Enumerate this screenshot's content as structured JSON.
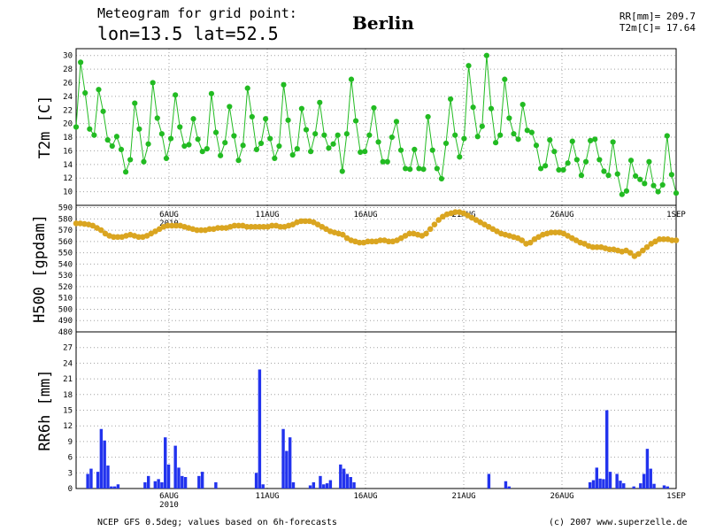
{
  "header": {
    "line1": "Meteogram for grid point:",
    "line2": "lon=13.5 lat=52.5",
    "city": "Berlin",
    "rr_total": "RR[mm]= 209.7",
    "t2m_mean": "T2m[C]= 17.64"
  },
  "footer": {
    "source": "NCEP GFS 0.5deg; values based on 6h-forecasts",
    "copyright": "(c) 2007 www.superzelle.de"
  },
  "colors": {
    "t2m": "#22bb22",
    "h500": "#daa520",
    "rr": "#2233ee",
    "grid": "#a0a0a0"
  },
  "chart_data": [
    {
      "type": "line",
      "ylabel": "T2m [C]",
      "ylim": [
        8,
        31
      ],
      "yticks": [
        10,
        12,
        14,
        16,
        18,
        20,
        22,
        24,
        26,
        28,
        30
      ],
      "xticks": [
        "6AUG",
        "11AUG",
        "16AUG",
        "21AUG",
        "26AUG",
        "1SEP"
      ],
      "year_label": "2010",
      "grid": true,
      "series": [
        {
          "values": [
            19.5,
            29.0,
            24.5,
            19.2,
            18.3,
            25.0,
            21.8,
            17.6,
            16.7,
            18.1,
            16.2,
            12.9,
            14.7,
            23.0,
            19.2,
            14.4,
            17.0,
            26.0,
            20.8,
            18.5,
            14.9,
            17.8,
            24.2,
            19.5,
            16.7,
            16.9,
            20.7,
            17.7,
            15.9,
            16.3,
            24.4,
            18.7,
            15.3,
            17.2,
            22.5,
            18.2,
            14.6,
            16.8,
            25.2,
            21.0,
            16.2,
            17.1,
            20.7,
            17.8,
            14.9,
            16.7,
            25.7,
            20.5,
            15.4,
            16.3,
            22.2,
            19.1,
            15.9,
            18.5,
            23.1,
            18.3,
            16.4,
            17.0,
            18.3,
            13.0,
            18.5,
            26.5,
            20.4,
            15.8,
            15.9,
            18.3,
            22.3,
            17.3,
            14.4,
            14.4,
            18.0,
            20.3,
            16.1,
            13.4,
            13.3,
            16.2,
            13.4,
            13.3,
            21.0,
            16.1,
            13.4,
            11.9,
            17.1,
            23.6,
            18.3,
            15.1,
            17.8,
            28.5,
            22.4,
            18.1,
            19.6,
            30.0,
            22.2,
            17.2,
            18.3,
            26.5,
            20.8,
            18.5,
            17.7,
            22.8,
            19.0,
            18.7,
            16.8,
            13.4,
            13.8,
            17.6,
            15.9,
            13.2,
            13.2,
            14.2,
            17.4,
            14.7,
            12.4,
            14.4,
            17.5,
            17.7,
            14.7,
            13.0,
            12.4,
            17.3,
            12.6,
            9.6,
            10.1,
            14.6,
            12.3,
            11.8,
            11.2,
            14.4,
            10.9,
            10.0,
            11.0,
            18.2,
            12.5,
            9.8
          ]
        }
      ]
    },
    {
      "type": "line",
      "ylabel": "H500 [gpdam]",
      "ylim": [
        480,
        592
      ],
      "yticks": [
        480,
        490,
        500,
        510,
        520,
        530,
        540,
        550,
        560,
        570,
        580,
        590
      ],
      "xticks": [
        "6AUG",
        "11AUG",
        "16AUG",
        "21AUG",
        "26AUG",
        "1SEP"
      ],
      "year_label": "2010",
      "grid": true,
      "series": [
        {
          "values": [
            576,
            576,
            575.5,
            575,
            574,
            572,
            570,
            567,
            565,
            564,
            564,
            564,
            565,
            566,
            565,
            564,
            564,
            565,
            567,
            569,
            571,
            573,
            574,
            574,
            574,
            574,
            573,
            572,
            571,
            570,
            570,
            570,
            571,
            571,
            572,
            572,
            572,
            573,
            574,
            574,
            574,
            573,
            573,
            573,
            573,
            573,
            573,
            574,
            574,
            573,
            573,
            574,
            575,
            577,
            578,
            578,
            578,
            577,
            575,
            573,
            571,
            569,
            568,
            567,
            566,
            563,
            561,
            560,
            559,
            559,
            560,
            560,
            560,
            561,
            561,
            560,
            560,
            561,
            563,
            565,
            567,
            567,
            566,
            565,
            567,
            571,
            575,
            579,
            582,
            584,
            585,
            586,
            586,
            585,
            583,
            581,
            579,
            577,
            575,
            573,
            571,
            569,
            567,
            566,
            565,
            564,
            563,
            561,
            558,
            559,
            562,
            564,
            566,
            567,
            568,
            568,
            568,
            567,
            565,
            563,
            561,
            559,
            558,
            556,
            555,
            555,
            555,
            554,
            553,
            553,
            552,
            551,
            552,
            550,
            547,
            549,
            552,
            555,
            558,
            560,
            562,
            562,
            562,
            561,
            561
          ]
        }
      ]
    },
    {
      "type": "bar",
      "ylabel": "RR6h [mm]",
      "ylim": [
        0,
        30
      ],
      "yticks": [
        0,
        3,
        6,
        9,
        12,
        15,
        18,
        21,
        24,
        27
      ],
      "xticks": [
        "6AUG",
        "11AUG",
        "16AUG",
        "21AUG",
        "26AUG",
        "1SEP"
      ],
      "year_label": "2010",
      "grid": true,
      "series": [
        {
          "values": [
            0,
            0,
            0,
            2.8,
            3.8,
            0,
            3.2,
            11.4,
            9.2,
            4.4,
            0.4,
            0.4,
            0.8,
            0,
            0,
            0,
            0,
            0,
            0,
            0,
            1.2,
            2.4,
            0,
            1.4,
            1.8,
            1.2,
            9.8,
            4.6,
            0,
            8.2,
            4.0,
            2.4,
            2.2,
            0,
            0,
            0,
            2.4,
            3.2,
            0,
            0,
            0,
            1.2,
            0,
            0,
            0,
            0,
            0,
            0,
            0,
            0,
            0,
            0,
            0,
            3.0,
            22.8,
            0.8,
            0,
            0,
            0,
            0,
            0,
            11.4,
            7.2,
            9.8,
            1.2,
            0,
            0,
            0,
            0,
            0.6,
            1.2,
            0,
            2.4,
            0.8,
            1.0,
            1.6,
            0,
            0,
            4.6,
            3.8,
            2.8,
            2.2,
            1.2,
            0,
            0,
            0,
            0,
            0,
            0,
            0,
            0,
            0,
            0,
            0,
            0,
            0,
            0,
            0,
            0,
            0,
            0,
            0,
            0,
            0,
            0,
            0,
            0,
            0,
            0,
            0,
            0,
            0,
            0,
            0,
            0,
            0,
            0,
            0,
            0,
            0,
            0,
            0,
            2.8,
            0,
            0,
            0,
            0,
            1.4,
            0.4,
            0,
            0,
            0,
            0,
            0,
            0,
            0,
            0,
            0,
            0,
            0,
            0,
            0,
            0,
            0,
            0,
            0,
            0,
            0,
            0,
            0,
            0,
            0,
            1.2,
            1.6,
            4.0,
            1.9,
            1.8,
            15.0,
            3.2,
            0,
            2.8,
            1.5,
            1.0,
            0,
            0,
            0.4,
            0,
            1.0,
            2.8,
            7.6,
            3.8,
            0.9,
            0,
            0,
            0.6,
            0.4,
            0,
            0
          ]
        }
      ]
    }
  ]
}
